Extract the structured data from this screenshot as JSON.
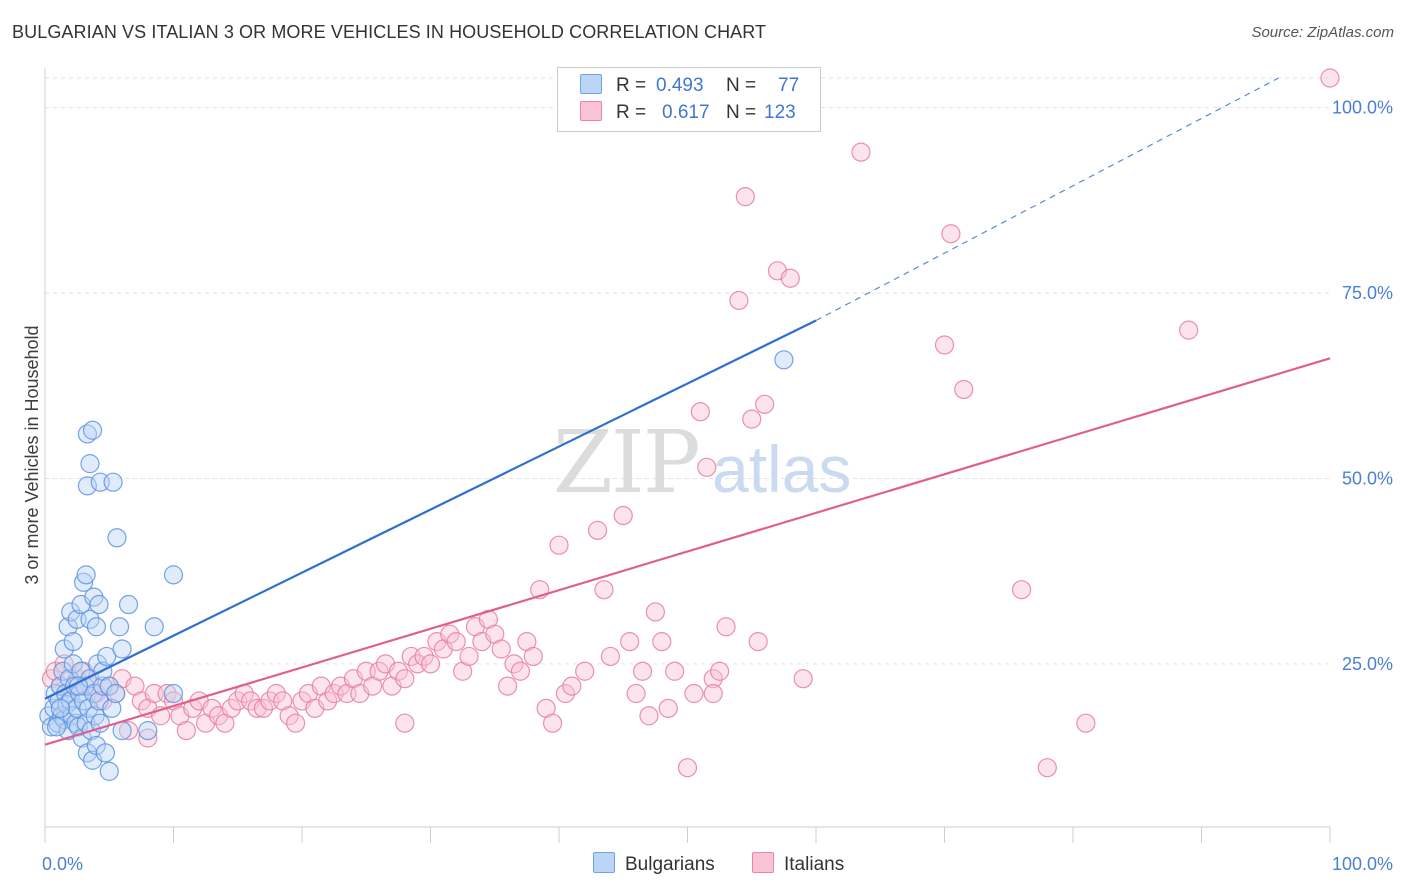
{
  "title": "BULGARIAN VS ITALIAN 3 OR MORE VEHICLES IN HOUSEHOLD CORRELATION CHART",
  "source": "Source: ZipAtlas.com",
  "watermark": {
    "zip": "ZIP",
    "atlas": "atlas"
  },
  "legend": {
    "r_label": "R =",
    "n_label": "N =",
    "rows": [
      {
        "name": "Bulgarians",
        "r": "0.493",
        "n": "77",
        "color": "#6fa3e8",
        "fill": "#bcd4f6"
      },
      {
        "name": "Italians",
        "r": "0.617",
        "n": "123",
        "color": "#ec84a6",
        "fill": "#f8c4d4"
      }
    ]
  },
  "chart_data": {
    "type": "scatter",
    "title": "BULGARIAN VS ITALIAN 3 OR MORE VEHICLES IN HOUSEHOLD CORRELATION CHART",
    "xlabel": "",
    "ylabel": "3 or more Vehicles in Household",
    "xlim": [
      0,
      100
    ],
    "ylim": [
      3,
      104
    ],
    "x_tick_labels": [
      "0.0%",
      "100.0%"
    ],
    "y_ticks": [
      25,
      50,
      75,
      100
    ],
    "y_tick_labels": [
      "25.0%",
      "50.0%",
      "75.0%",
      "100.0%"
    ],
    "grid": true,
    "legend_position": "top-center",
    "series": [
      {
        "name": "Bulgarians",
        "color": "#5d93e0",
        "fill": "#bcd4f6",
        "trendline": {
          "x": [
            0,
            60
          ],
          "y": [
            20.3,
            71.3
          ],
          "color": "#2f6fd0",
          "dashed_extension_to": [
            96,
            104
          ]
        },
        "points": [
          [
            0.3,
            18
          ],
          [
            0.5,
            16.5
          ],
          [
            0.7,
            19
          ],
          [
            0.8,
            21
          ],
          [
            1.0,
            17
          ],
          [
            1.1,
            20
          ],
          [
            1.2,
            22
          ],
          [
            1.3,
            18
          ],
          [
            1.4,
            24
          ],
          [
            1.5,
            17.5
          ],
          [
            1.6,
            21
          ],
          [
            1.7,
            19.5
          ],
          [
            1.8,
            16
          ],
          [
            1.9,
            23
          ],
          [
            2.0,
            20
          ],
          [
            2.1,
            18
          ],
          [
            2.2,
            25
          ],
          [
            2.3,
            22
          ],
          [
            2.4,
            17
          ],
          [
            2.5,
            19
          ],
          [
            2.6,
            16.5
          ],
          [
            2.7,
            21
          ],
          [
            2.8,
            24
          ],
          [
            2.9,
            15
          ],
          [
            3.0,
            20
          ],
          [
            3.1,
            22
          ],
          [
            3.2,
            17
          ],
          [
            3.3,
            13
          ],
          [
            3.4,
            19
          ],
          [
            3.5,
            23
          ],
          [
            3.6,
            16
          ],
          [
            3.7,
            12
          ],
          [
            3.8,
            21
          ],
          [
            3.9,
            18
          ],
          [
            4.0,
            14
          ],
          [
            4.1,
            25
          ],
          [
            4.2,
            20
          ],
          [
            4.3,
            17
          ],
          [
            4.5,
            22
          ],
          [
            4.7,
            13
          ],
          [
            1.5,
            27
          ],
          [
            1.8,
            30
          ],
          [
            2.0,
            32
          ],
          [
            2.2,
            28
          ],
          [
            2.5,
            31
          ],
          [
            2.8,
            33
          ],
          [
            3.0,
            36
          ],
          [
            3.2,
            37
          ],
          [
            3.5,
            31
          ],
          [
            3.8,
            34
          ],
          [
            4.0,
            30
          ],
          [
            4.2,
            33
          ],
          [
            4.5,
            24
          ],
          [
            4.8,
            26
          ],
          [
            5.0,
            22
          ],
          [
            5.2,
            19
          ],
          [
            5.5,
            21
          ],
          [
            5.8,
            30
          ],
          [
            6.0,
            27
          ],
          [
            6.5,
            33
          ],
          [
            3.5,
            52
          ],
          [
            3.3,
            56
          ],
          [
            3.7,
            56.5
          ],
          [
            3.3,
            49
          ],
          [
            4.3,
            49.5
          ],
          [
            5.3,
            49.5
          ],
          [
            5.6,
            42
          ],
          [
            10.0,
            37
          ],
          [
            10.0,
            21
          ],
          [
            8.5,
            30
          ],
          [
            6.0,
            16
          ],
          [
            8.0,
            16
          ],
          [
            5.0,
            10.5
          ],
          [
            1.2,
            19
          ],
          [
            0.9,
            16.5
          ],
          [
            2.6,
            22
          ],
          [
            57.5,
            66
          ]
        ]
      },
      {
        "name": "Italians",
        "color": "#e97ca0",
        "fill": "#f8c4d4",
        "trendline": {
          "x": [
            0,
            100
          ],
          "y": [
            14.1,
            66.2
          ],
          "color": "#e0608c"
        },
        "points": [
          [
            0.5,
            23
          ],
          [
            0.8,
            24
          ],
          [
            1.2,
            22
          ],
          [
            1.5,
            25
          ],
          [
            2.0,
            21
          ],
          [
            2.5,
            23
          ],
          [
            3.0,
            24
          ],
          [
            3.5,
            22
          ],
          [
            4.0,
            21
          ],
          [
            4.5,
            20
          ],
          [
            5.0,
            22
          ],
          [
            5.5,
            21
          ],
          [
            6.0,
            23
          ],
          [
            6.5,
            16
          ],
          [
            7.0,
            22
          ],
          [
            7.5,
            20
          ],
          [
            8.0,
            19
          ],
          [
            8.5,
            21
          ],
          [
            9.0,
            18
          ],
          [
            9.5,
            21
          ],
          [
            10.0,
            20
          ],
          [
            10.5,
            18
          ],
          [
            11.0,
            16
          ],
          [
            11.5,
            19
          ],
          [
            12.0,
            20
          ],
          [
            12.5,
            17
          ],
          [
            13.0,
            19
          ],
          [
            13.5,
            18
          ],
          [
            14.0,
            17
          ],
          [
            14.5,
            19
          ],
          [
            15.0,
            20
          ],
          [
            15.5,
            21
          ],
          [
            16.0,
            20
          ],
          [
            16.5,
            19
          ],
          [
            17.0,
            19
          ],
          [
            17.5,
            20
          ],
          [
            18.0,
            21
          ],
          [
            18.5,
            20
          ],
          [
            19.0,
            18
          ],
          [
            19.5,
            17
          ],
          [
            20.0,
            20
          ],
          [
            20.5,
            21
          ],
          [
            21.0,
            19
          ],
          [
            21.5,
            22
          ],
          [
            22.0,
            20
          ],
          [
            22.5,
            21
          ],
          [
            23.0,
            22
          ],
          [
            23.5,
            21
          ],
          [
            24.0,
            23
          ],
          [
            24.5,
            21
          ],
          [
            25.0,
            24
          ],
          [
            25.5,
            22
          ],
          [
            26.0,
            24
          ],
          [
            26.5,
            25
          ],
          [
            27.0,
            22
          ],
          [
            27.5,
            24
          ],
          [
            28.0,
            23
          ],
          [
            28.5,
            26
          ],
          [
            29.0,
            25
          ],
          [
            29.5,
            26
          ],
          [
            30.0,
            25
          ],
          [
            30.5,
            28
          ],
          [
            31.0,
            27
          ],
          [
            31.5,
            29
          ],
          [
            32.0,
            28
          ],
          [
            32.5,
            24
          ],
          [
            33.0,
            26
          ],
          [
            33.5,
            30
          ],
          [
            34.0,
            28
          ],
          [
            34.5,
            31
          ],
          [
            35.0,
            29
          ],
          [
            35.5,
            27
          ],
          [
            36.0,
            22
          ],
          [
            36.5,
            25
          ],
          [
            37.0,
            24
          ],
          [
            37.5,
            28
          ],
          [
            38.0,
            26
          ],
          [
            38.5,
            35
          ],
          [
            39.0,
            19
          ],
          [
            39.5,
            17
          ],
          [
            40.0,
            41
          ],
          [
            40.5,
            21
          ],
          [
            41.0,
            22
          ],
          [
            42.0,
            24
          ],
          [
            43.0,
            43
          ],
          [
            43.5,
            35
          ],
          [
            44.0,
            26
          ],
          [
            45.0,
            45
          ],
          [
            46.0,
            21
          ],
          [
            46.5,
            24
          ],
          [
            47.0,
            18
          ],
          [
            47.5,
            32
          ],
          [
            48.0,
            28
          ],
          [
            49.0,
            24
          ],
          [
            50.0,
            11
          ],
          [
            50.5,
            21
          ],
          [
            51.0,
            59
          ],
          [
            51.5,
            51.5
          ],
          [
            52.0,
            23
          ],
          [
            52.5,
            24
          ],
          [
            53.0,
            30
          ],
          [
            54.0,
            74
          ],
          [
            54.5,
            88
          ],
          [
            55.0,
            58
          ],
          [
            55.5,
            28
          ],
          [
            56.0,
            60
          ],
          [
            57.0,
            78
          ],
          [
            58.0,
            77
          ],
          [
            63.5,
            94
          ],
          [
            70.0,
            68
          ],
          [
            70.5,
            83
          ],
          [
            71.5,
            62
          ],
          [
            76.0,
            35
          ],
          [
            78.0,
            11
          ],
          [
            81.0,
            17
          ],
          [
            89.0,
            70
          ],
          [
            100.0,
            104
          ],
          [
            59.0,
            23
          ],
          [
            45.5,
            28
          ],
          [
            48.5,
            19
          ],
          [
            52.0,
            21
          ],
          [
            28.0,
            17
          ],
          [
            8.0,
            15
          ]
        ]
      }
    ]
  }
}
